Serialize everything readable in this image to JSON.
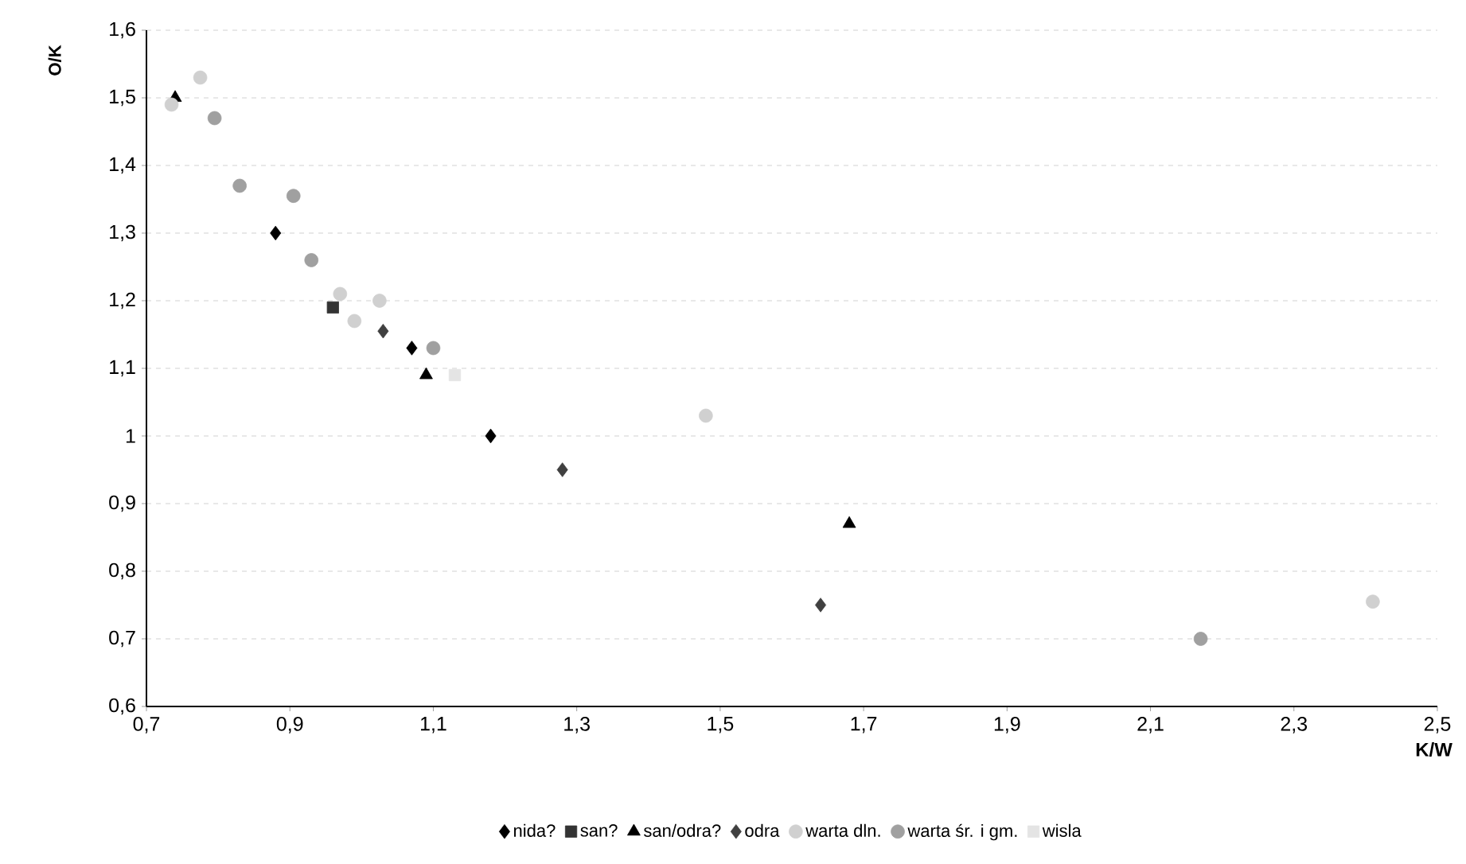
{
  "chart_data": {
    "type": "scatter",
    "xlabel": "K/W",
    "ylabel": "O/K",
    "xlim": [
      0.7,
      2.5
    ],
    "ylim": [
      0.6,
      1.6
    ],
    "xticks": [
      {
        "value": 0.7,
        "label": "0,7"
      },
      {
        "value": 0.9,
        "label": "0,9"
      },
      {
        "value": 1.1,
        "label": "1,1"
      },
      {
        "value": 1.3,
        "label": "1,3"
      },
      {
        "value": 1.5,
        "label": "1,5"
      },
      {
        "value": 1.7,
        "label": "1,7"
      },
      {
        "value": 1.9,
        "label": "1,9"
      },
      {
        "value": 2.1,
        "label": "2,1"
      },
      {
        "value": 2.3,
        "label": "2,3"
      },
      {
        "value": 2.5,
        "label": "2,5"
      }
    ],
    "yticks": [
      {
        "value": 0.6,
        "label": "0,6"
      },
      {
        "value": 0.7,
        "label": "0,7"
      },
      {
        "value": 0.8,
        "label": "0,8"
      },
      {
        "value": 0.9,
        "label": "0,9"
      },
      1,
      {
        "value": 1.1,
        "label": "1,1"
      },
      {
        "value": 1.2,
        "label": "1,2"
      },
      {
        "value": 1.3,
        "label": "1,3"
      },
      {
        "value": 1.4,
        "label": "1,4"
      },
      {
        "value": 1.5,
        "label": "1,5"
      },
      {
        "value": 1.6,
        "label": "1,6"
      }
    ],
    "grid": "y",
    "legend": "bottom",
    "series": [
      {
        "name": "nida?",
        "color": "#000000",
        "marker": "diamond",
        "x": [
          0.88,
          1.07,
          1.18
        ],
        "values": [
          1.3,
          1.13,
          1.0
        ]
      },
      {
        "name": "san?",
        "color": "#333333",
        "marker": "square",
        "x": [
          0.96
        ],
        "values": [
          1.19
        ]
      },
      {
        "name": "san/odra?",
        "color": "#000000",
        "marker": "triangle",
        "x": [
          0.74,
          1.09,
          1.68
        ],
        "values": [
          1.5,
          1.09,
          0.87
        ]
      },
      {
        "name": "odra",
        "color": "#404040",
        "marker": "diamond",
        "x": [
          1.03,
          1.28,
          1.64
        ],
        "values": [
          1.155,
          0.95,
          0.75
        ]
      },
      {
        "name": "warta dln.",
        "color": "#d0d0d0",
        "marker": "circle",
        "x": [
          0.735,
          0.775,
          0.97,
          0.99,
          1.025,
          1.48,
          2.41
        ],
        "values": [
          1.49,
          1.53,
          1.21,
          1.17,
          1.2,
          1.03,
          0.755
        ]
      },
      {
        "name": "warta śr. i gm.",
        "color": "#a0a0a0",
        "marker": "circle",
        "x": [
          0.795,
          0.83,
          0.905,
          0.93,
          1.1,
          2.17
        ],
        "values": [
          1.47,
          1.37,
          1.355,
          1.26,
          1.13,
          0.7
        ]
      },
      {
        "name": "wisla",
        "color": "#e4e4e4",
        "marker": "square",
        "x": [
          1.13
        ],
        "values": [
          1.09
        ]
      }
    ]
  }
}
